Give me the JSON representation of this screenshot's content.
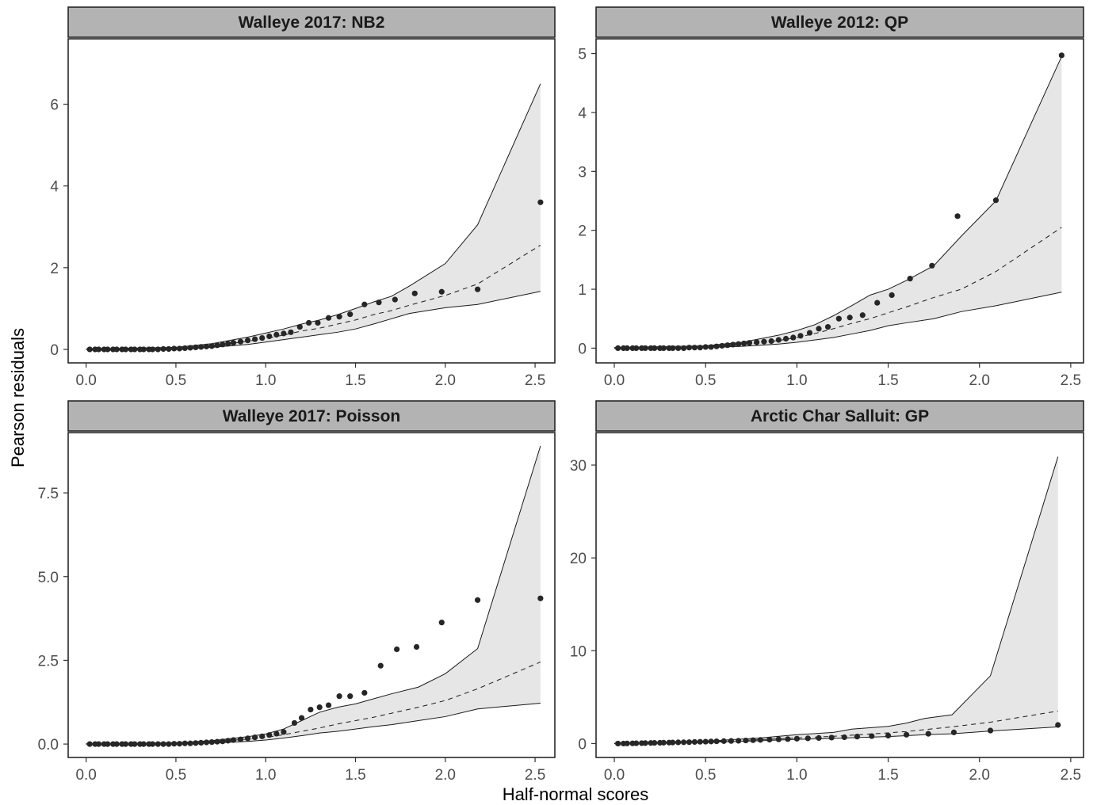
{
  "figure": {
    "xlabel": "Half-normal scores",
    "ylabel": "Pearson residuals"
  },
  "colors": {
    "envelope_fill": "#e6e6e6",
    "strip_fill": "#b3b3b3",
    "points": "#262626",
    "lines": "#1a1a1a",
    "panel_border": "#1a1a1a"
  },
  "chart_data": [
    {
      "type": "scatter",
      "title": "Walleye 2017: NB2",
      "xlim": [
        -0.1,
        2.61
      ],
      "ylim": [
        -0.33,
        7.6
      ],
      "xticks": [
        0.0,
        0.5,
        1.0,
        1.5,
        2.0,
        2.5
      ],
      "xtick_labels": [
        "0.0",
        "0.5",
        "1.0",
        "1.5",
        "2.0",
        "2.5"
      ],
      "yticks": [
        0,
        2,
        4,
        6
      ],
      "ytick_labels": [
        "0",
        "2",
        "4",
        "6"
      ],
      "grid": false,
      "points": {
        "x": [
          0.02,
          0.05,
          0.07,
          0.1,
          0.12,
          0.15,
          0.17,
          0.2,
          0.22,
          0.25,
          0.27,
          0.3,
          0.32,
          0.35,
          0.37,
          0.4,
          0.43,
          0.46,
          0.49,
          0.52,
          0.55,
          0.58,
          0.61,
          0.64,
          0.67,
          0.7,
          0.73,
          0.76,
          0.79,
          0.82,
          0.86,
          0.9,
          0.94,
          0.98,
          1.02,
          1.06,
          1.1,
          1.14,
          1.19,
          1.24,
          1.29,
          1.35,
          1.41,
          1.47,
          1.55,
          1.63,
          1.72,
          1.83,
          1.98,
          2.18,
          2.53
        ],
        "y": [
          0,
          0,
          0,
          0,
          0,
          0,
          0,
          0,
          0,
          0,
          0,
          0,
          0,
          0,
          0,
          0,
          0.01,
          0.01,
          0.02,
          0.02,
          0.03,
          0.04,
          0.05,
          0.06,
          0.07,
          0.08,
          0.1,
          0.12,
          0.14,
          0.16,
          0.19,
          0.22,
          0.25,
          0.28,
          0.32,
          0.36,
          0.39,
          0.42,
          0.55,
          0.65,
          0.65,
          0.77,
          0.8,
          0.86,
          1.1,
          1.15,
          1.22,
          1.37,
          1.41,
          1.47,
          3.6
        ]
      },
      "envelope": {
        "x": [
          0,
          0.5,
          0.7,
          0.9,
          1.0,
          1.1,
          1.2,
          1.3,
          1.4,
          1.5,
          1.6,
          1.7,
          1.8,
          2.0,
          2.18,
          2.53
        ],
        "upper": [
          0.01,
          0.05,
          0.14,
          0.3,
          0.4,
          0.5,
          0.62,
          0.72,
          0.85,
          1.0,
          1.16,
          1.3,
          1.55,
          2.1,
          3.05,
          6.5
        ],
        "lower": [
          0,
          0.01,
          0.05,
          0.12,
          0.18,
          0.24,
          0.3,
          0.36,
          0.42,
          0.5,
          0.62,
          0.75,
          0.88,
          1.02,
          1.1,
          1.42
        ],
        "median": [
          0,
          0.02,
          0.08,
          0.2,
          0.27,
          0.35,
          0.45,
          0.52,
          0.62,
          0.72,
          0.85,
          0.95,
          1.08,
          1.32,
          1.6,
          2.55
        ]
      }
    },
    {
      "type": "scatter",
      "title": "Walleye 2012: QP",
      "xlim": [
        -0.1,
        2.57
      ],
      "ylim": [
        -0.25,
        5.25
      ],
      "xticks": [
        0.0,
        0.5,
        1.0,
        1.5,
        2.0,
        2.5
      ],
      "xtick_labels": [
        "0.0",
        "0.5",
        "1.0",
        "1.5",
        "2.0",
        "2.5"
      ],
      "yticks": [
        0,
        1,
        2,
        3,
        4,
        5
      ],
      "ytick_labels": [
        "0",
        "1",
        "2",
        "3",
        "4",
        "5"
      ],
      "grid": false,
      "points": {
        "x": [
          0.02,
          0.05,
          0.07,
          0.1,
          0.12,
          0.15,
          0.17,
          0.2,
          0.22,
          0.25,
          0.27,
          0.3,
          0.32,
          0.35,
          0.38,
          0.41,
          0.44,
          0.47,
          0.5,
          0.53,
          0.56,
          0.59,
          0.62,
          0.65,
          0.68,
          0.71,
          0.74,
          0.78,
          0.82,
          0.86,
          0.9,
          0.94,
          0.98,
          1.02,
          1.07,
          1.12,
          1.17,
          1.23,
          1.29,
          1.36,
          1.44,
          1.52,
          1.62,
          1.74,
          1.88,
          2.09,
          2.45
        ],
        "y": [
          0,
          0,
          0,
          0,
          0,
          0,
          0,
          0,
          0,
          0,
          0,
          0,
          0,
          0,
          0,
          0.01,
          0.01,
          0.01,
          0.02,
          0.02,
          0.03,
          0.04,
          0.05,
          0.06,
          0.07,
          0.08,
          0.09,
          0.1,
          0.11,
          0.12,
          0.14,
          0.16,
          0.18,
          0.21,
          0.26,
          0.33,
          0.36,
          0.5,
          0.52,
          0.56,
          0.77,
          0.9,
          1.18,
          1.4,
          2.24,
          2.51,
          4.97
        ]
      },
      "envelope": {
        "x": [
          0,
          0.5,
          0.7,
          0.9,
          1.0,
          1.1,
          1.2,
          1.3,
          1.4,
          1.5,
          1.6,
          1.75,
          1.9,
          2.09,
          2.45
        ],
        "upper": [
          0.01,
          0.04,
          0.1,
          0.22,
          0.3,
          0.4,
          0.55,
          0.72,
          0.9,
          1.0,
          1.15,
          1.4,
          1.9,
          2.5,
          4.95
        ],
        "lower": [
          0,
          0.01,
          0.03,
          0.07,
          0.1,
          0.14,
          0.18,
          0.24,
          0.3,
          0.38,
          0.43,
          0.5,
          0.62,
          0.72,
          0.95
        ],
        "median": [
          0,
          0.02,
          0.06,
          0.13,
          0.18,
          0.25,
          0.33,
          0.42,
          0.5,
          0.6,
          0.7,
          0.86,
          1.0,
          1.3,
          2.05
        ]
      }
    },
    {
      "type": "scatter",
      "title": "Walleye 2017: Poisson",
      "xlim": [
        -0.1,
        2.61
      ],
      "ylim": [
        -0.4,
        9.3
      ],
      "xticks": [
        0.0,
        0.5,
        1.0,
        1.5,
        2.0,
        2.5
      ],
      "xtick_labels": [
        "0.0",
        "0.5",
        "1.0",
        "1.5",
        "2.0",
        "2.5"
      ],
      "yticks": [
        0.0,
        2.5,
        5.0,
        7.5
      ],
      "ytick_labels": [
        "0.0",
        "2.5",
        "5.0",
        "7.5"
      ],
      "grid": false,
      "points": {
        "x": [
          0.02,
          0.05,
          0.07,
          0.1,
          0.12,
          0.15,
          0.17,
          0.2,
          0.22,
          0.25,
          0.27,
          0.3,
          0.32,
          0.35,
          0.37,
          0.4,
          0.43,
          0.46,
          0.49,
          0.52,
          0.55,
          0.58,
          0.61,
          0.64,
          0.67,
          0.7,
          0.73,
          0.76,
          0.79,
          0.82,
          0.86,
          0.9,
          0.94,
          0.98,
          1.02,
          1.06,
          1.1,
          1.16,
          1.2,
          1.25,
          1.3,
          1.35,
          1.41,
          1.47,
          1.55,
          1.64,
          1.73,
          1.84,
          1.98,
          2.18,
          2.53
        ],
        "y": [
          0,
          0,
          0,
          0,
          0,
          0,
          0,
          0,
          0,
          0,
          0,
          0,
          0,
          0,
          0,
          0,
          0,
          0,
          0.01,
          0.01,
          0.02,
          0.02,
          0.03,
          0.04,
          0.05,
          0.06,
          0.07,
          0.08,
          0.1,
          0.12,
          0.14,
          0.17,
          0.2,
          0.23,
          0.27,
          0.31,
          0.36,
          0.63,
          0.78,
          1.03,
          1.1,
          1.16,
          1.43,
          1.43,
          1.53,
          2.34,
          2.83,
          2.9,
          3.63,
          4.3,
          4.35
        ]
      },
      "envelope": {
        "x": [
          0,
          0.5,
          0.7,
          0.9,
          1.0,
          1.1,
          1.2,
          1.3,
          1.4,
          1.5,
          1.6,
          1.7,
          1.85,
          2.0,
          2.18,
          2.53
        ],
        "upper": [
          0.01,
          0.04,
          0.1,
          0.22,
          0.3,
          0.45,
          0.7,
          0.95,
          1.1,
          1.2,
          1.35,
          1.5,
          1.7,
          2.1,
          2.85,
          8.9
        ],
        "lower": [
          0,
          0.01,
          0.03,
          0.08,
          0.12,
          0.18,
          0.25,
          0.33,
          0.38,
          0.45,
          0.52,
          0.58,
          0.7,
          0.82,
          1.05,
          1.22
        ],
        "median": [
          0,
          0.02,
          0.06,
          0.15,
          0.2,
          0.28,
          0.38,
          0.48,
          0.6,
          0.7,
          0.8,
          0.92,
          1.1,
          1.3,
          1.65,
          2.45
        ]
      }
    },
    {
      "type": "scatter",
      "title": "Arctic Char Salluit: GP",
      "xlim": [
        -0.1,
        2.57
      ],
      "ylim": [
        -1.5,
        33.5
      ],
      "xticks": [
        0.0,
        0.5,
        1.0,
        1.5,
        2.0,
        2.5
      ],
      "xtick_labels": [
        "0.0",
        "0.5",
        "1.0",
        "1.5",
        "2.0",
        "2.5"
      ],
      "yticks": [
        0,
        10,
        20,
        30
      ],
      "ytick_labels": [
        "0",
        "10",
        "20",
        "30"
      ],
      "grid": false,
      "points": {
        "x": [
          0.02,
          0.05,
          0.07,
          0.1,
          0.12,
          0.15,
          0.17,
          0.2,
          0.22,
          0.25,
          0.27,
          0.3,
          0.32,
          0.35,
          0.38,
          0.41,
          0.44,
          0.47,
          0.5,
          0.53,
          0.56,
          0.6,
          0.64,
          0.68,
          0.72,
          0.76,
          0.8,
          0.85,
          0.9,
          0.95,
          1.0,
          1.06,
          1.12,
          1.19,
          1.26,
          1.33,
          1.41,
          1.5,
          1.6,
          1.72,
          1.86,
          2.06,
          2.43
        ],
        "y": [
          0,
          0,
          0.01,
          0.02,
          0.03,
          0.04,
          0.05,
          0.06,
          0.07,
          0.08,
          0.09,
          0.1,
          0.11,
          0.13,
          0.14,
          0.15,
          0.17,
          0.19,
          0.2,
          0.22,
          0.24,
          0.26,
          0.28,
          0.3,
          0.33,
          0.36,
          0.39,
          0.42,
          0.45,
          0.48,
          0.52,
          0.56,
          0.6,
          0.64,
          0.68,
          0.75,
          0.8,
          0.85,
          0.95,
          1.05,
          1.2,
          1.4,
          2.0
        ]
      },
      "envelope": {
        "x": [
          0,
          0.5,
          0.8,
          1.0,
          1.2,
          1.3,
          1.5,
          1.6,
          1.7,
          1.85,
          2.06,
          2.43
        ],
        "upper": [
          0.01,
          0.25,
          0.6,
          0.95,
          1.2,
          1.55,
          1.85,
          2.2,
          2.7,
          3.1,
          7.3,
          30.9
        ],
        "lower": [
          0,
          0.12,
          0.3,
          0.45,
          0.55,
          0.62,
          0.75,
          0.85,
          0.95,
          1.05,
          1.35,
          1.8
        ],
        "median": [
          0,
          0.18,
          0.42,
          0.6,
          0.78,
          0.9,
          1.15,
          1.3,
          1.5,
          1.8,
          2.3,
          3.5
        ]
      }
    }
  ]
}
